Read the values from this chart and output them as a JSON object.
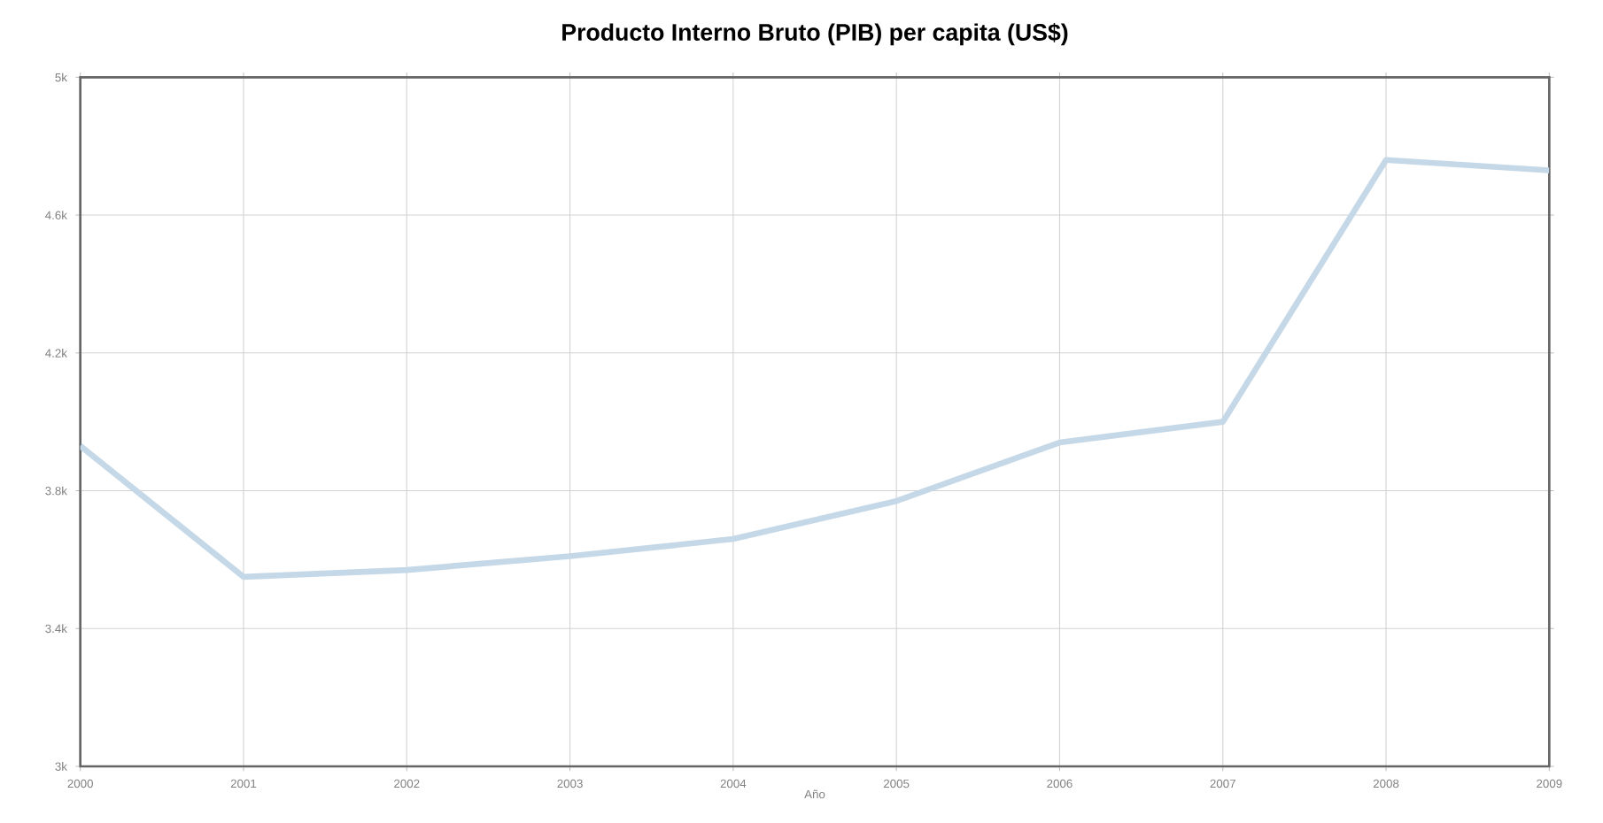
{
  "chart_data": {
    "type": "line",
    "title": "Producto Interno Bruto (PIB) per capita (US$)",
    "xlabel": "Año",
    "x": [
      2000,
      2001,
      2002,
      2003,
      2004,
      2005,
      2006,
      2007,
      2008,
      2009
    ],
    "values": [
      3.93,
      3.55,
      3.57,
      3.61,
      3.66,
      3.77,
      3.94,
      4.0,
      4.76,
      4.73
    ],
    "color": "#c5d8e8",
    "xlim": [
      2000,
      2009
    ],
    "xticks": [
      2000,
      2001,
      2002,
      2003,
      2004,
      2005,
      2006,
      2007,
      2008,
      2009
    ],
    "ylim": [
      3.0,
      5.0
    ],
    "yticks": [
      {
        "value": 3.0,
        "label": "3k"
      },
      {
        "value": 3.4,
        "label": "3.4k"
      },
      {
        "value": 3.8,
        "label": "3.8k"
      },
      {
        "value": 4.2,
        "label": "4.2k"
      },
      {
        "value": 4.6,
        "label": "4.6k"
      },
      {
        "value": 5.0,
        "label": "5k"
      }
    ],
    "grid": true,
    "marker": "none",
    "line_style": "solid"
  }
}
